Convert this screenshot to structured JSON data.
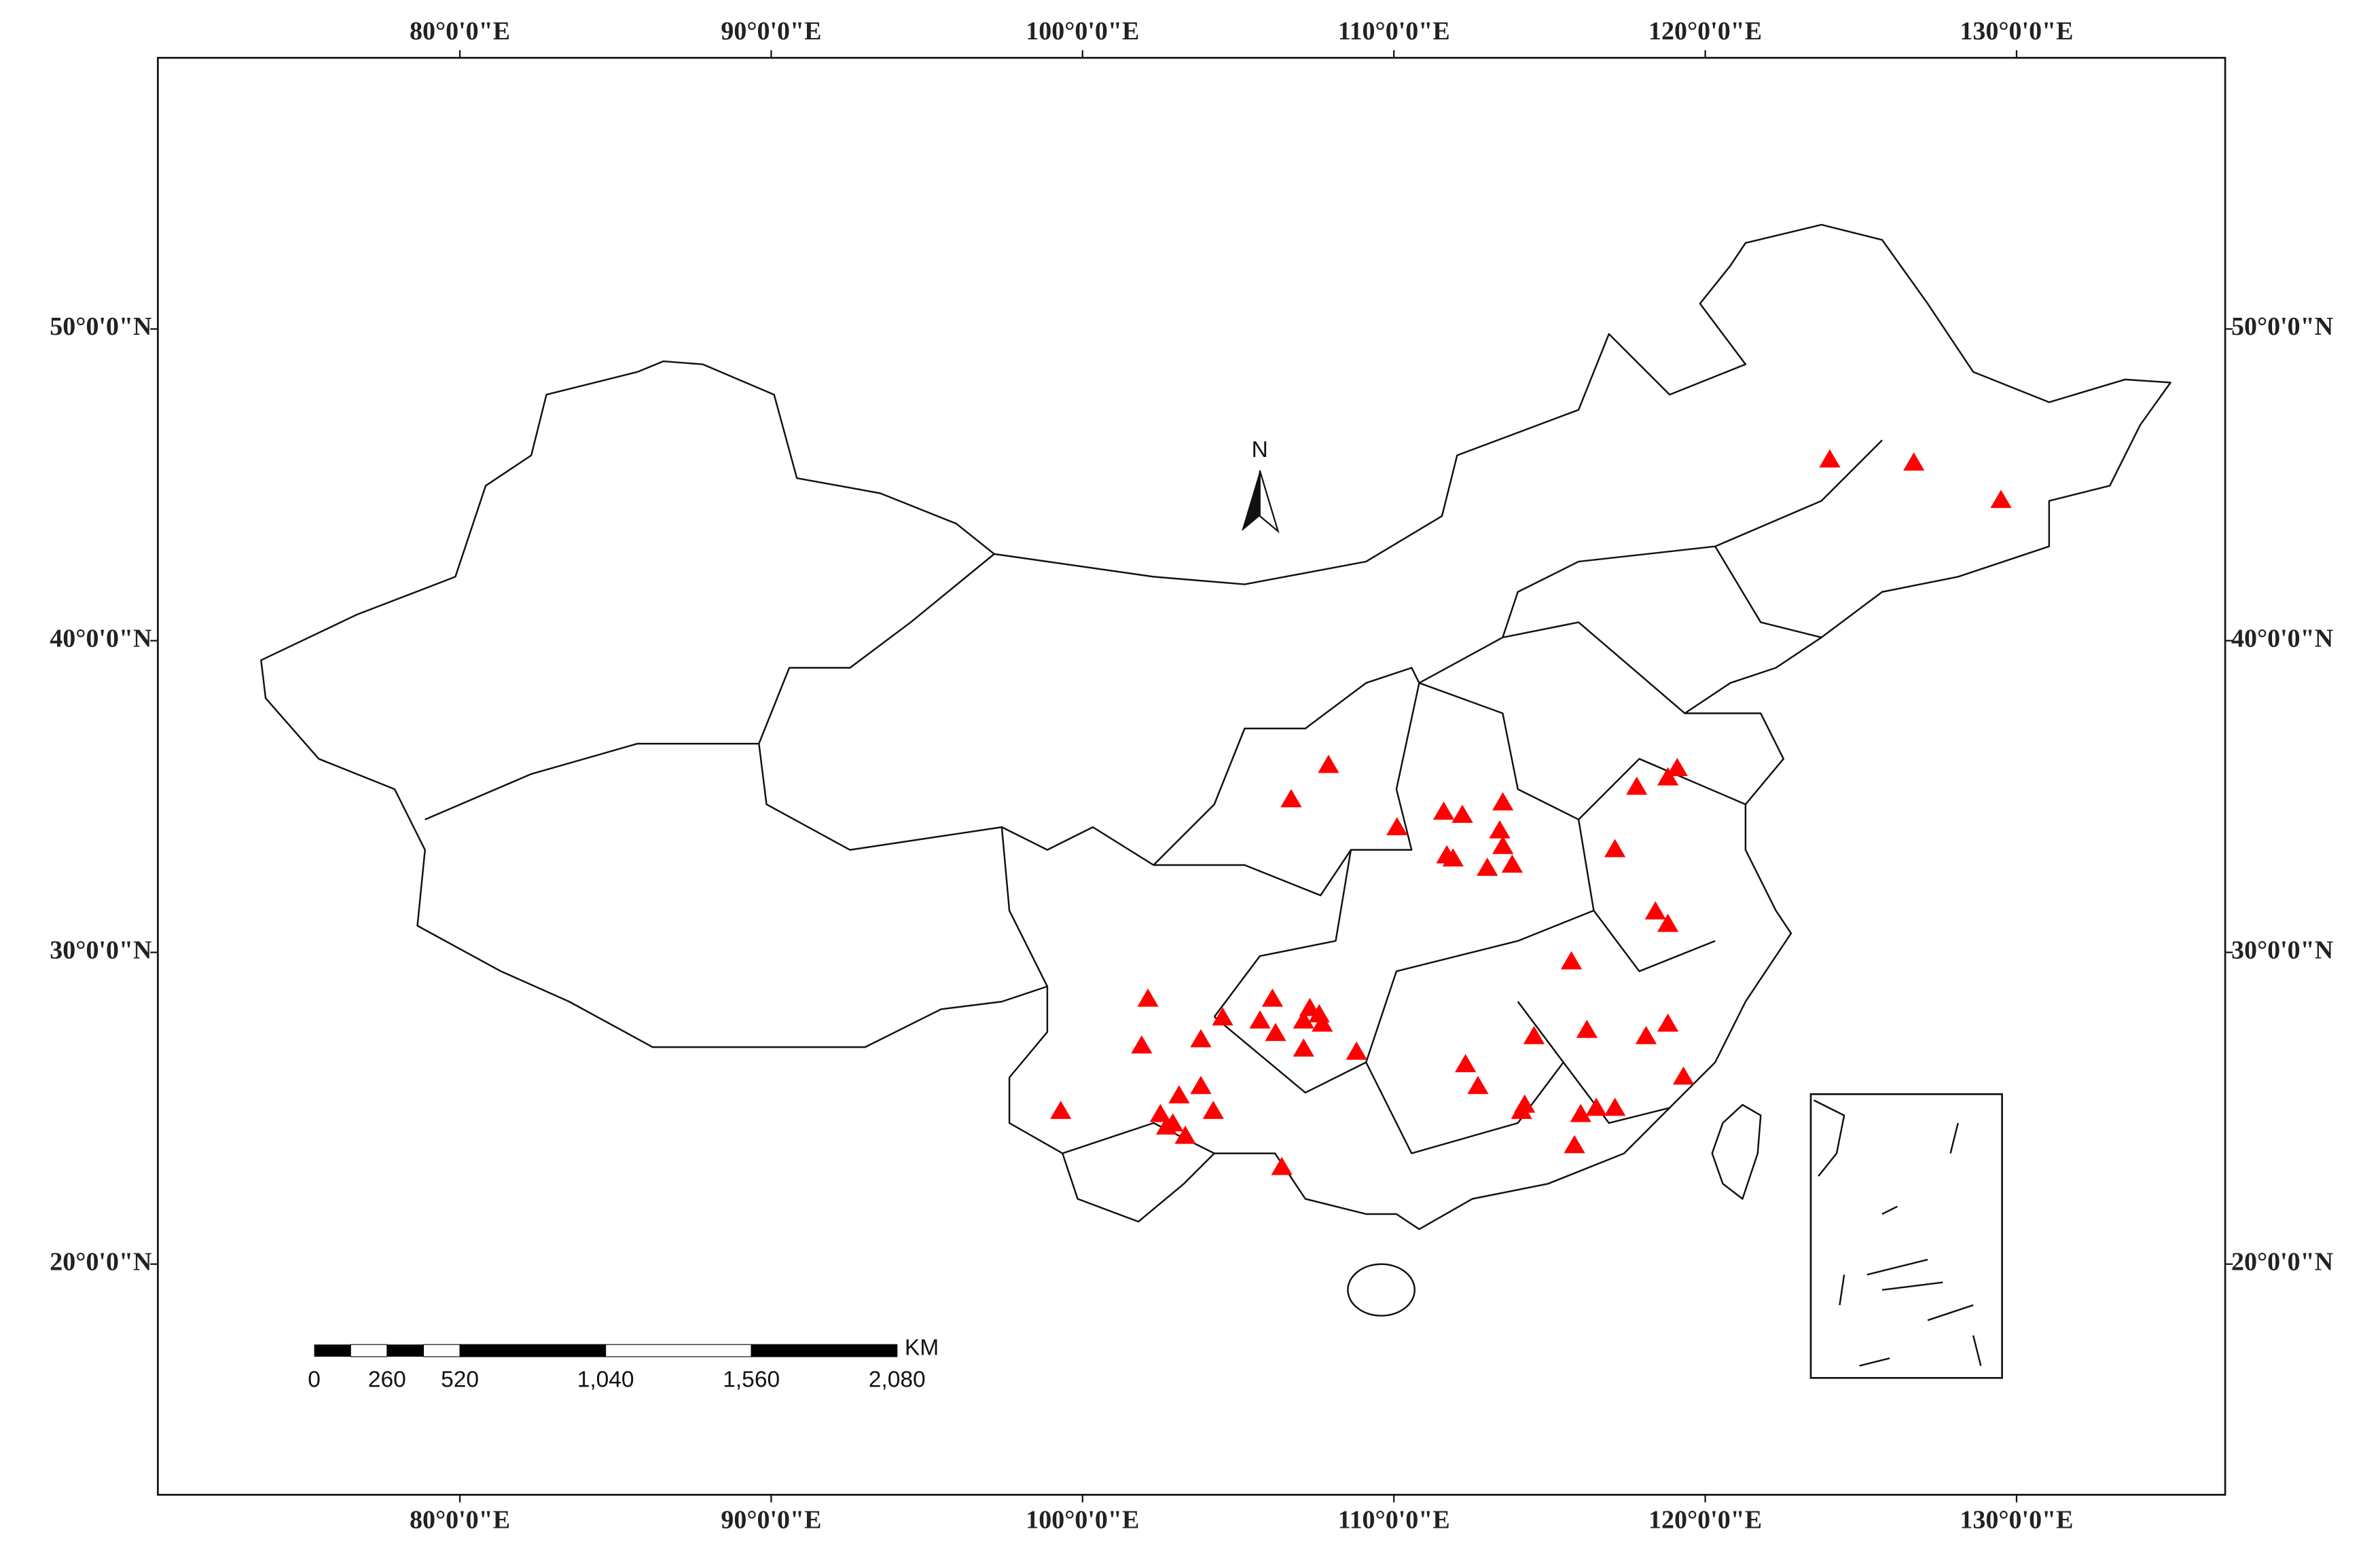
{
  "map": {
    "xlim": [
      70.3,
      136.7
    ],
    "ylim": [
      12.6,
      58.7
    ],
    "xticks": [
      {
        "value": 80,
        "label": "80°0'0\"E"
      },
      {
        "value": 90,
        "label": "90°0'0\"E"
      },
      {
        "value": 100,
        "label": "100°0'0\"E"
      },
      {
        "value": 110,
        "label": "110°0'0\"E"
      },
      {
        "value": 120,
        "label": "120°0'0\"E"
      },
      {
        "value": 130,
        "label": "130°0'0\"E"
      }
    ],
    "yticks": [
      {
        "value": 20,
        "label": "20°0'0\"N"
      },
      {
        "value": 30,
        "label": "30°0'0\"N"
      },
      {
        "value": 40,
        "label": "40°0'0\"N"
      },
      {
        "value": 50,
        "label": "50°0'0\"N"
      }
    ],
    "north_label": "N",
    "sites": {
      "color": "#ff0000",
      "lon": [
        124.0,
        126.7,
        129.5,
        107.9,
        106.7,
        110.1,
        111.6,
        112.2,
        113.5,
        113.4,
        113.5,
        111.7,
        111.9,
        113.0,
        113.8,
        117.8,
        118.8,
        119.1,
        117.1,
        118.4,
        118.8,
        115.7,
        102.1,
        101.9,
        104.5,
        106.1,
        105.7,
        106.2,
        107.3,
        107.6,
        107.1,
        107.7,
        107.1,
        103.8,
        108.8,
        99.3,
        102.5,
        103.1,
        103.8,
        102.9,
        102.7,
        103.3,
        104.2,
        106.4,
        112.3,
        112.7,
        114.5,
        116.2,
        118.1,
        118.8,
        119.3,
        114.2,
        114.1,
        116.0,
        116.5,
        117.1,
        115.8
      ],
      "lat": [
        45.8,
        45.7,
        44.5,
        36.0,
        34.9,
        34.0,
        34.5,
        34.4,
        34.8,
        33.9,
        33.4,
        33.1,
        33.0,
        32.7,
        32.8,
        35.3,
        35.6,
        35.9,
        33.3,
        31.3,
        30.9,
        29.7,
        28.5,
        27.0,
        27.9,
        28.5,
        27.8,
        27.4,
        28.2,
        28.0,
        27.8,
        27.7,
        26.9,
        27.2,
        26.8,
        24.9,
        24.8,
        25.4,
        25.7,
        24.5,
        24.4,
        24.1,
        24.9,
        23.1,
        26.4,
        25.7,
        27.3,
        27.5,
        27.3,
        27.7,
        26.0,
        25.1,
        24.9,
        24.8,
        25.0,
        25.0,
        23.8
      ]
    },
    "scale_bar": {
      "unit": "KM",
      "ticks": [
        0,
        260,
        520,
        {
          "value": 1040,
          "label": "1,040"
        },
        {
          "value": 1560,
          "label": "1,560"
        },
        {
          "value": 2080,
          "label": "2,080"
        }
      ]
    }
  }
}
